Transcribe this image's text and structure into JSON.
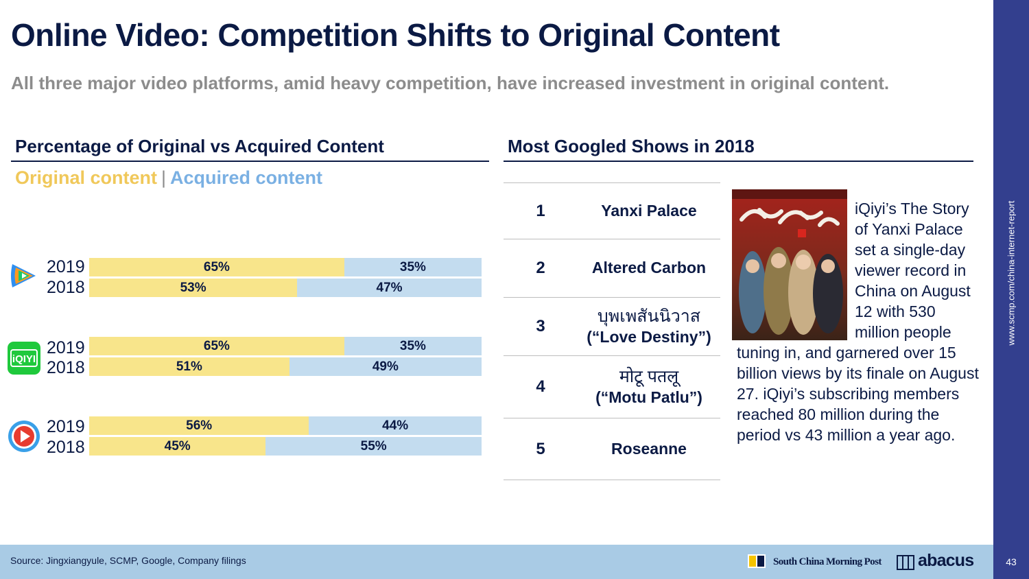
{
  "header": {
    "title": "Online Video: Competition Shifts to Original Content",
    "subtitle": "All three major video platforms, amid heavy competition, have increased investment in original content."
  },
  "left_section": {
    "heading": "Percentage of Original vs Acquired Content",
    "legend_original": "Original content",
    "legend_separator": "|",
    "legend_acquired": "Acquired content"
  },
  "chart_data": {
    "type": "bar",
    "orientation": "horizontal",
    "stacked": true,
    "normalized": true,
    "title": "Percentage of Original vs Acquired Content",
    "colors": {
      "original": "#f8e58b",
      "acquired": "#c3dcef",
      "legend_original": "#f0c85a",
      "legend_acquired": "#7ab0e3"
    },
    "groups": [
      {
        "platform_icon": "tencent-video-logo-icon",
        "rows": [
          {
            "year": "2019",
            "original": 65,
            "acquired": 35
          },
          {
            "year": "2018",
            "original": 53,
            "acquired": 47
          }
        ]
      },
      {
        "platform_icon": "iqiyi-logo-icon",
        "rows": [
          {
            "year": "2019",
            "original": 65,
            "acquired": 35
          },
          {
            "year": "2018",
            "original": 51,
            "acquired": 49
          }
        ]
      },
      {
        "platform_icon": "youku-logo-icon",
        "rows": [
          {
            "year": "2019",
            "original": 56,
            "acquired": 44
          },
          {
            "year": "2018",
            "original": 45,
            "acquired": 55
          }
        ]
      }
    ],
    "series": [
      {
        "name": "Original content"
      },
      {
        "name": "Acquired content"
      }
    ],
    "unit": "%"
  },
  "right_section": {
    "heading": "Most Googled Shows in 2018",
    "shows": [
      {
        "rank": "1",
        "name": "Yanxi Palace",
        "native": ""
      },
      {
        "rank": "2",
        "name": "Altered Carbon",
        "native": ""
      },
      {
        "rank": "3",
        "name": "(“Love Destiny”)",
        "native": "บุพเพสันนิวาส"
      },
      {
        "rank": "4",
        "name": "(“Motu Patlu”)",
        "native": "मोटू पतलू"
      },
      {
        "rank": "5",
        "name": "Roseanne",
        "native": ""
      }
    ],
    "poster_icon": "yanxi-palace-poster",
    "description": "iQiyi’s The Story of Yanxi Palace set a single-day viewer record in China on August 12 with 530 million people tuning in, and garnered over 15 billion views by its finale on August 27. iQiyi’s subscribing members reached 80 million during the period vs 43 million a year ago."
  },
  "footer": {
    "source": "Source: Jingxiangyule, SCMP, Google, Company filings",
    "scmp_name": "South China Morning Post",
    "abacus_name": "abacus"
  },
  "sidebar": {
    "url": "www.scmp.com/china-internet-report",
    "page_number": "43"
  }
}
